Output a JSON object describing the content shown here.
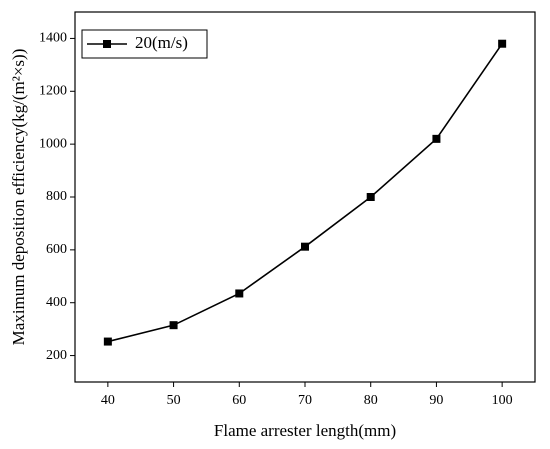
{
  "chart_data": {
    "type": "line",
    "x_label": "Flame arrester length(mm)",
    "y_label": "Maximum deposition efficiency(kg/(m²×s))",
    "x": [
      40,
      50,
      60,
      70,
      80,
      90,
      100
    ],
    "series": [
      {
        "name": "20(m/s)",
        "color": "#000000",
        "values": [
          253,
          315,
          435,
          612,
          800,
          1020,
          1380
        ]
      }
    ],
    "xlim": [
      35,
      105
    ],
    "xticks": [
      40,
      50,
      60,
      70,
      80,
      90,
      100
    ],
    "ylim": [
      100,
      1500
    ],
    "yticks": [
      200,
      400,
      600,
      800,
      1000,
      1200,
      1400
    ],
    "legend": "upper left",
    "grid": false
  }
}
